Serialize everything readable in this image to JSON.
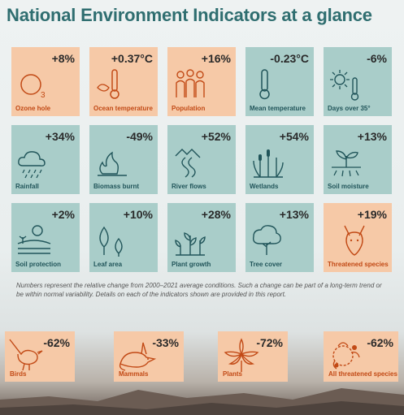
{
  "title": "National Environment Indicators at a glance",
  "tiles": [
    {
      "label": "Ozone hole",
      "value": "+8%",
      "icon": "ozone-icon"
    },
    {
      "label": "Ocean temperature",
      "value": "+0.37°C",
      "icon": "ocean-thermometer-icon"
    },
    {
      "label": "Population",
      "value": "+16%",
      "icon": "people-icon"
    },
    {
      "label": "Mean temperature",
      "value": "-0.23°C",
      "icon": "thermometer-icon"
    },
    {
      "label": "Days over 35°",
      "value": "-6%",
      "icon": "hot-sun-icon"
    },
    {
      "label": "Rainfall",
      "value": "+34%",
      "icon": "rain-cloud-icon"
    },
    {
      "label": "Biomass burnt",
      "value": "-49%",
      "icon": "fire-tree-icon"
    },
    {
      "label": "River flows",
      "value": "+52%",
      "icon": "river-icon"
    },
    {
      "label": "Wetlands",
      "value": "+54%",
      "icon": "reeds-icon"
    },
    {
      "label": "Soil moisture",
      "value": "+13%",
      "icon": "sprout-icon"
    },
    {
      "label": "Soil protection",
      "value": "+2%",
      "icon": "ground-cover-icon"
    },
    {
      "label": "Leaf area",
      "value": "+10%",
      "icon": "leaf-icon"
    },
    {
      "label": "Plant growth",
      "value": "+28%",
      "icon": "plants-icon"
    },
    {
      "label": "Tree cover",
      "value": "+13%",
      "icon": "tree-icon"
    },
    {
      "label": "Threatened species",
      "value": "+19%",
      "icon": "kangaroo-icon"
    }
  ],
  "colors": {
    "orange": "#f6c9a7",
    "teal": "#a9cdc9",
    "title": "#2f6e70",
    "accent": "#c24a16"
  },
  "note": "Numbers represent the relative change from 2000–2021 average conditions. Such a change can be part of a long-term trend or be within normal variability. Details on each of the indicators shown are provided in this report.",
  "species": [
    {
      "label": "Birds",
      "value": "-62%",
      "icon": "bird-icon"
    },
    {
      "label": "Mammals",
      "value": "-33%",
      "icon": "bilby-icon"
    },
    {
      "label": "Plants",
      "value": "-72%",
      "icon": "flower-icon"
    },
    {
      "label": "All threatened species",
      "value": "-62%",
      "icon": "species-icon"
    }
  ]
}
